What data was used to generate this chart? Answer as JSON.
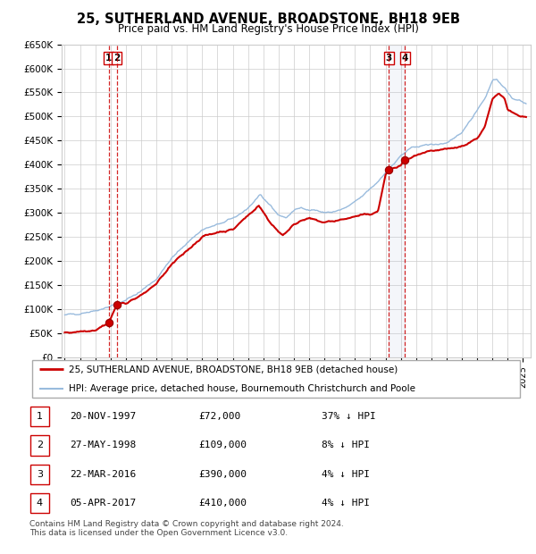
{
  "title": "25, SUTHERLAND AVENUE, BROADSTONE, BH18 9EB",
  "subtitle": "Price paid vs. HM Land Registry's House Price Index (HPI)",
  "legend_house": "25, SUTHERLAND AVENUE, BROADSTONE, BH18 9EB (detached house)",
  "legend_hpi": "HPI: Average price, detached house, Bournemouth Christchurch and Poole",
  "footer": "Contains HM Land Registry data © Crown copyright and database right 2024.\nThis data is licensed under the Open Government Licence v3.0.",
  "house_color": "#cc0000",
  "hpi_color": "#99bbdd",
  "transactions": [
    {
      "num": 1,
      "date": "20-NOV-1997",
      "date_float": 1997.89,
      "price": 72000,
      "pct": "37% ↓ HPI"
    },
    {
      "num": 2,
      "date": "27-MAY-1998",
      "date_float": 1998.41,
      "price": 109000,
      "pct": "8% ↓ HPI"
    },
    {
      "num": 3,
      "date": "22-MAR-2016",
      "date_float": 2016.22,
      "price": 390000,
      "pct": "4% ↓ HPI"
    },
    {
      "num": 4,
      "date": "05-APR-2017",
      "date_float": 2017.26,
      "price": 410000,
      "pct": "4% ↓ HPI"
    }
  ],
  "ylim": [
    0,
    650000
  ],
  "xlim": [
    1994.8,
    2025.5
  ],
  "yticks": [
    0,
    50000,
    100000,
    150000,
    200000,
    250000,
    300000,
    350000,
    400000,
    450000,
    500000,
    550000,
    600000,
    650000
  ],
  "ytick_labels": [
    "£0",
    "£50K",
    "£100K",
    "£150K",
    "£200K",
    "£250K",
    "£300K",
    "£350K",
    "£400K",
    "£450K",
    "£500K",
    "£550K",
    "£600K",
    "£650K"
  ],
  "table_rows": [
    [
      "1",
      "20-NOV-1997",
      "£72,000",
      "37% ↓ HPI"
    ],
    [
      "2",
      "27-MAY-1998",
      "£109,000",
      "8% ↓ HPI"
    ],
    [
      "3",
      "22-MAR-2016",
      "£390,000",
      "4% ↓ HPI"
    ],
    [
      "4",
      "05-APR-2017",
      "£410,000",
      "4% ↓ HPI"
    ]
  ]
}
